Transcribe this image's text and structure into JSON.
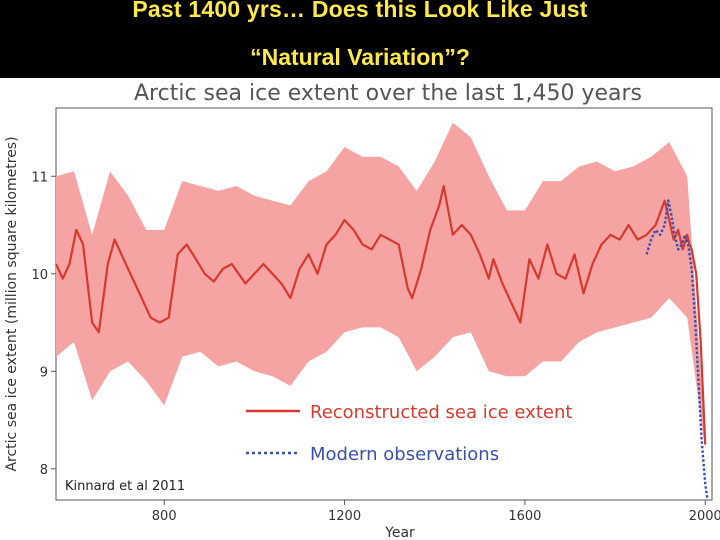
{
  "slide": {
    "title_line1": "Past 1400 yrs… Does this Look Like Just",
    "title_line2": "“Natural Variation”?"
  },
  "colors": {
    "slide_background": "#000000",
    "slide_title": "#ffe94a",
    "reconstruction": "#d63a2f",
    "uncertainty_band": "#f5a3a3",
    "observations": "#3a4fb0",
    "title_text": "#555555"
  },
  "credit": "Kinnard et al 2011",
  "chart_data": {
    "type": "line",
    "title": "Arctic sea ice extent over the last 1,450 years",
    "xlabel": "Year",
    "ylabel": "Arctic sea ice extent (million square kilometres)",
    "xlim": [
      560,
      2015
    ],
    "ylim": [
      7.68,
      11.7
    ],
    "xticks": [
      800,
      1200,
      1600,
      2000
    ],
    "yticks": [
      8,
      9,
      10,
      11
    ],
    "grid": false,
    "legend_position": "bottom-right",
    "series": [
      {
        "name": "Reconstructed sea ice extent",
        "style": "solid",
        "x": [
          560,
          575,
          590,
          605,
          620,
          640,
          655,
          675,
          690,
          705,
          720,
          735,
          750,
          770,
          790,
          810,
          830,
          850,
          870,
          890,
          910,
          930,
          950,
          965,
          980,
          1000,
          1020,
          1040,
          1060,
          1080,
          1100,
          1120,
          1140,
          1160,
          1180,
          1200,
          1220,
          1240,
          1260,
          1280,
          1300,
          1320,
          1340,
          1350,
          1370,
          1390,
          1410,
          1420,
          1440,
          1460,
          1480,
          1500,
          1520,
          1530,
          1550,
          1570,
          1590,
          1610,
          1630,
          1650,
          1670,
          1690,
          1710,
          1730,
          1750,
          1770,
          1790,
          1810,
          1830,
          1850,
          1870,
          1890,
          1910,
          1920,
          1930,
          1940,
          1950,
          1960,
          1965,
          1970,
          1980,
          1990,
          2000
        ],
        "values": [
          10.1,
          9.95,
          10.1,
          10.45,
          10.3,
          9.5,
          9.4,
          10.1,
          10.35,
          10.2,
          10.05,
          9.9,
          9.75,
          9.55,
          9.5,
          9.55,
          10.2,
          10.3,
          10.15,
          10.0,
          9.92,
          10.05,
          10.1,
          10.0,
          9.9,
          10.0,
          10.1,
          10.0,
          9.9,
          9.75,
          10.05,
          10.2,
          10.0,
          10.3,
          10.4,
          10.55,
          10.45,
          10.3,
          10.25,
          10.4,
          10.35,
          10.3,
          9.85,
          9.75,
          10.05,
          10.45,
          10.7,
          10.9,
          10.4,
          10.5,
          10.4,
          10.2,
          9.95,
          10.15,
          9.9,
          9.7,
          9.5,
          10.15,
          9.95,
          10.3,
          10.0,
          9.95,
          10.2,
          9.8,
          10.1,
          10.3,
          10.4,
          10.35,
          10.5,
          10.35,
          10.4,
          10.5,
          10.75,
          10.55,
          10.35,
          10.45,
          10.25,
          10.4,
          10.3,
          10.25,
          10.0,
          9.3,
          8.25
        ]
      },
      {
        "name": "Modern observations",
        "style": "dotted",
        "x": [
          1870,
          1880,
          1890,
          1900,
          1910,
          1918,
          1925,
          1932,
          1940,
          1948,
          1955,
          1962,
          1970,
          1978,
          1985,
          1992,
          2000,
          2005
        ],
        "values": [
          10.2,
          10.35,
          10.45,
          10.4,
          10.5,
          10.75,
          10.6,
          10.4,
          10.25,
          10.3,
          10.4,
          10.3,
          10.05,
          9.5,
          8.9,
          8.3,
          7.85,
          7.68
        ]
      }
    ],
    "uncertainty": {
      "x": [
        560,
        600,
        640,
        680,
        720,
        760,
        800,
        840,
        880,
        920,
        960,
        1000,
        1040,
        1080,
        1120,
        1160,
        1200,
        1240,
        1280,
        1320,
        1360,
        1400,
        1440,
        1480,
        1520,
        1560,
        1600,
        1640,
        1680,
        1720,
        1760,
        1800,
        1840,
        1880,
        1920,
        1960,
        2000
      ],
      "lower": [
        9.15,
        9.3,
        8.7,
        9.0,
        9.1,
        8.9,
        8.65,
        9.15,
        9.2,
        9.05,
        9.1,
        9.0,
        8.95,
        8.85,
        9.1,
        9.2,
        9.4,
        9.45,
        9.45,
        9.35,
        9.0,
        9.15,
        9.35,
        9.4,
        9.0,
        8.95,
        8.95,
        9.1,
        9.1,
        9.3,
        9.4,
        9.45,
        9.5,
        9.55,
        9.75,
        9.55,
        8.2
      ],
      "upper": [
        11.0,
        11.05,
        10.4,
        11.05,
        10.8,
        10.45,
        10.45,
        10.95,
        10.9,
        10.85,
        10.9,
        10.8,
        10.75,
        10.7,
        10.95,
        11.05,
        11.3,
        11.2,
        11.2,
        11.1,
        10.85,
        11.15,
        11.55,
        11.4,
        11.0,
        10.65,
        10.65,
        10.95,
        10.95,
        11.1,
        11.15,
        11.05,
        11.1,
        11.2,
        11.35,
        11.0,
        8.35
      ]
    }
  }
}
